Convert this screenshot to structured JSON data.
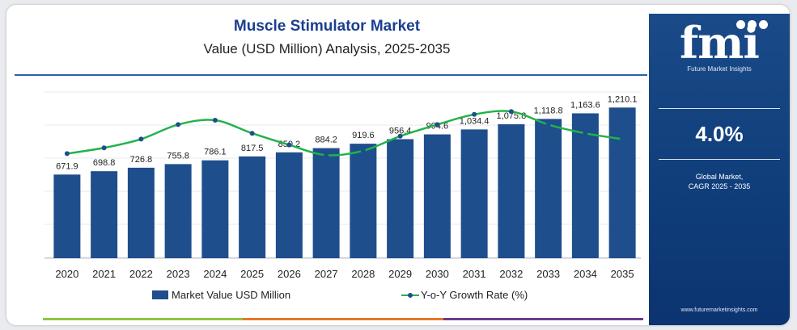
{
  "header": {
    "title": "Muscle Stimulator Market",
    "subtitle": "Value (USD Million) Analysis, 2025-2035"
  },
  "chart_data": {
    "type": "bar",
    "categories": [
      "2020",
      "2021",
      "2022",
      "2023",
      "2024",
      "2025",
      "2026",
      "2027",
      "2028",
      "2029",
      "2030",
      "2031",
      "2032",
      "2033",
      "2034",
      "2035"
    ],
    "series": [
      {
        "name": "Market Value USD Million",
        "type": "bar",
        "values": [
          671.9,
          698.8,
          726.8,
          755.8,
          786.1,
          817.5,
          850.2,
          884.2,
          919.6,
          956.4,
          994.6,
          1034.4,
          1075.8,
          1118.8,
          1163.6,
          1210.1
        ],
        "labels": [
          "671.9",
          "698.8",
          "726.8",
          "755.8",
          "786.1",
          "817.5",
          "850.2",
          "884.2",
          "919.6",
          "956.4",
          "994.6",
          "1,034.4",
          "1,075.8",
          "1,118.8",
          "1,163.6",
          "1,210.1"
        ]
      },
      {
        "name": "Y-o-Y Growth Rate (%)",
        "type": "line",
        "values": [
          3.6,
          3.8,
          4.1,
          4.6,
          4.75,
          4.3,
          3.9,
          3.55,
          3.7,
          4.2,
          4.6,
          4.95,
          5.05,
          4.6,
          4.3,
          4.1
        ]
      }
    ],
    "ylim": [
      0,
      1400
    ],
    "y2lim": [
      0,
      6
    ],
    "grid": true,
    "legend": "bottom",
    "colors": {
      "bar": "#1e4e8c",
      "line": "#22b34a",
      "marker": "#1e4e8c"
    }
  },
  "legend": {
    "bar_label": "Market Value USD Million",
    "line_label": "Y-o-Y Growth Rate (%)"
  },
  "side_panel": {
    "logo_text": "fmi",
    "logo_subtitle": "Future Market Insights",
    "cagr_value": "4.0%",
    "cagr_label_line1": "Global Market,",
    "cagr_label_line2": "CAGR 2025 - 2035",
    "website": "www.futuremarketinsights.com"
  },
  "bottom_bar_colors": [
    "#8cc63f",
    "#e8762b",
    "#6d3b8e"
  ]
}
